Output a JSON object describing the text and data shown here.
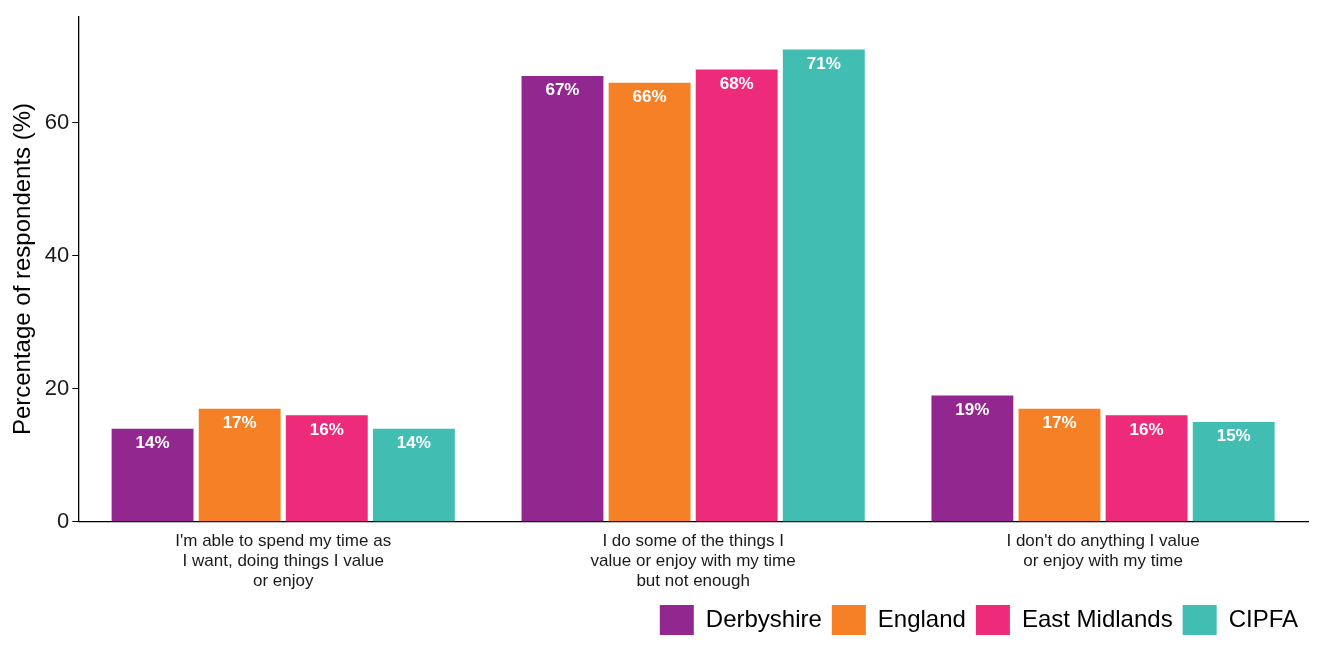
{
  "chart_data": {
    "type": "bar",
    "ylabel": "Percentage of respondents (%)",
    "categories": [
      "I'm able to spend my time as I want, doing things I value or enjoy",
      "I do some of the things I value or enjoy with my time but not enough",
      "I don't do anything I value or enjoy with my time"
    ],
    "series": [
      {
        "name": "Derbyshire",
        "color": "#91278f",
        "values": [
          14,
          67,
          19
        ],
        "value_labels": [
          "14%",
          "67%",
          "19%"
        ]
      },
      {
        "name": "England",
        "color": "#f58025",
        "values": [
          17,
          66,
          17
        ],
        "value_labels": [
          "17%",
          "66%",
          "17%"
        ]
      },
      {
        "name": "East Midlands",
        "color": "#ee2a7b",
        "values": [
          16,
          68,
          16
        ],
        "value_labels": [
          "16%",
          "68%",
          "16%"
        ]
      },
      {
        "name": "CIPFA",
        "color": "#41bdb2",
        "values": [
          14,
          71,
          15
        ],
        "value_labels": [
          "14%",
          "71%",
          "15%"
        ]
      }
    ],
    "ylim": [
      0,
      76
    ],
    "yticks": [
      0,
      20,
      40,
      60
    ],
    "grid": false,
    "legend": "bottom right"
  }
}
